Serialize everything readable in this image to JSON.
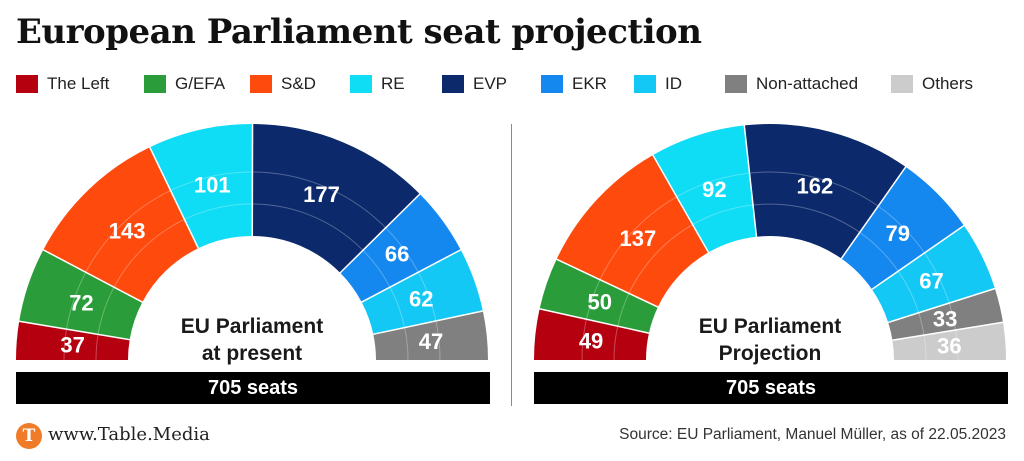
{
  "title": "European Parliament seat projection",
  "legend": [
    {
      "name": "The Left",
      "color": "#b5000f"
    },
    {
      "name": "G/EFA",
      "color": "#2a9d3a"
    },
    {
      "name": "S&D",
      "color": "#ff4a0e"
    },
    {
      "name": "RE",
      "color": "#0fdcf5"
    },
    {
      "name": "EVP",
      "color": "#0c2a6b"
    },
    {
      "name": "EKR",
      "color": "#1488ef"
    },
    {
      "name": "ID",
      "color": "#14c8f5"
    },
    {
      "name": "Non-attached",
      "color": "#808080"
    },
    {
      "name": "Others",
      "color": "#cccccc"
    }
  ],
  "chart_data": [
    {
      "type": "pie",
      "label_line1": "EU Parliament",
      "label_line2": "at present",
      "total_label": "705 seats",
      "categories": [
        "The Left",
        "G/EFA",
        "S&D",
        "RE",
        "EVP",
        "EKR",
        "ID",
        "Non-attached"
      ],
      "values": [
        37,
        72,
        143,
        101,
        177,
        66,
        62,
        47
      ],
      "colors": [
        "#b5000f",
        "#2a9d3a",
        "#ff4a0e",
        "#0fdcf5",
        "#0c2a6b",
        "#1488ef",
        "#14c8f5",
        "#808080"
      ]
    },
    {
      "type": "pie",
      "label_line1": "EU Parliament",
      "label_line2": "Projection",
      "total_label": "705 seats",
      "categories": [
        "The Left",
        "G/EFA",
        "S&D",
        "RE",
        "EVP",
        "EKR",
        "ID",
        "Non-attached",
        "Others"
      ],
      "values": [
        49,
        50,
        137,
        92,
        162,
        79,
        67,
        33,
        36
      ],
      "colors": [
        "#b5000f",
        "#2a9d3a",
        "#ff4a0e",
        "#0fdcf5",
        "#0c2a6b",
        "#1488ef",
        "#14c8f5",
        "#808080",
        "#cccccc"
      ]
    }
  ],
  "footer": {
    "logo_letter": "T",
    "url": "www.Table.Media",
    "source": "Source: EU Parliament, Manuel Müller, as of 22.05.2023"
  }
}
